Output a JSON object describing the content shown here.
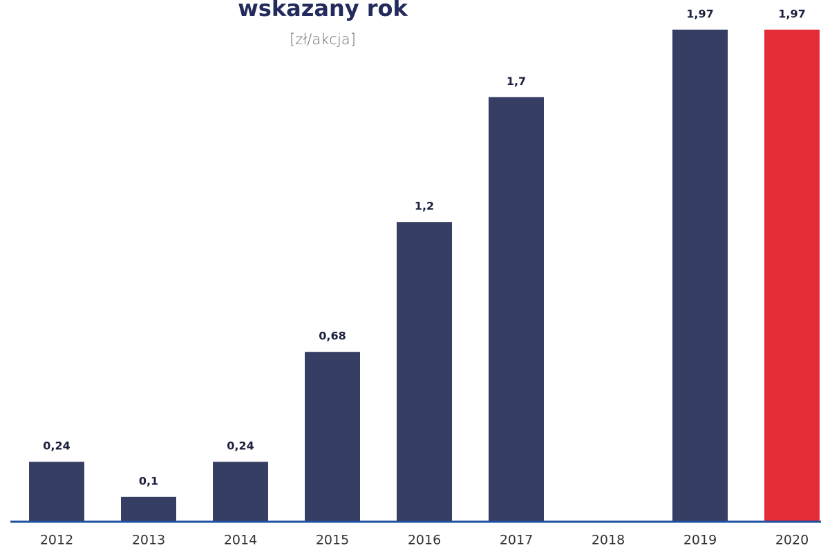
{
  "chart_data": {
    "type": "bar",
    "title": "wskazany rok",
    "subtitle": "[zł/akcja]",
    "categories": [
      "2012",
      "2013",
      "2014",
      "2015",
      "2016",
      "2017",
      "2018",
      "2019",
      "2020"
    ],
    "values": [
      0.24,
      0.1,
      0.24,
      0.68,
      1.2,
      1.7,
      null,
      1.97,
      1.97
    ],
    "value_labels": [
      "0,24",
      "0,1",
      "0,24",
      "0,68",
      "1,2",
      "1,7",
      null,
      "1,97",
      "1,97"
    ],
    "colors": [
      "#363f63",
      "#363f63",
      "#363f63",
      "#363f63",
      "#363f63",
      "#363f63",
      null,
      "#363f63",
      "#e52d37"
    ],
    "ylim": [
      0,
      2
    ]
  }
}
